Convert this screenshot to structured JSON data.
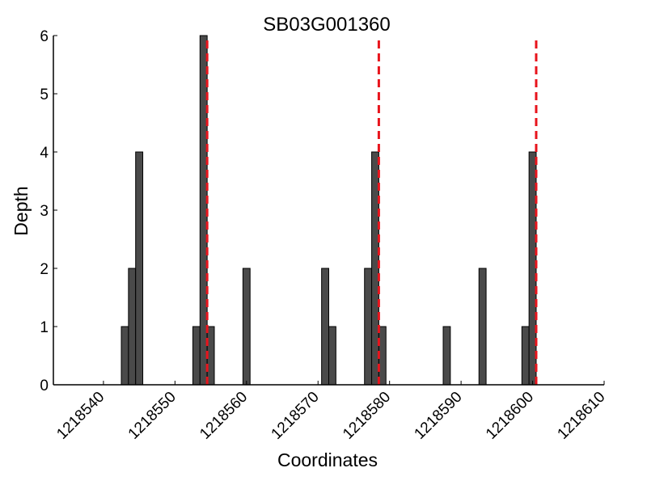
{
  "chart_data": {
    "type": "bar",
    "title": "SB03G001360",
    "xlabel": "Coordinates",
    "ylabel": "Depth",
    "xlim": [
      1218533,
      1218610
    ],
    "ylim": [
      0,
      6
    ],
    "x_ticks": [
      1218540,
      1218550,
      1218560,
      1218570,
      1218580,
      1218590,
      1218600,
      1218610
    ],
    "y_ticks": [
      0,
      1,
      2,
      3,
      4,
      5,
      6
    ],
    "grid": false,
    "bar_color": "#4a4a4a",
    "bar_edge_color": "#000000",
    "bar_width": 1,
    "bars": [
      {
        "x": 1218543,
        "depth": 1
      },
      {
        "x": 1218544,
        "depth": 2
      },
      {
        "x": 1218545,
        "depth": 4
      },
      {
        "x": 1218553,
        "depth": 1
      },
      {
        "x": 1218554,
        "depth": 6
      },
      {
        "x": 1218555,
        "depth": 1
      },
      {
        "x": 1218560,
        "depth": 2
      },
      {
        "x": 1218571,
        "depth": 2
      },
      {
        "x": 1218572,
        "depth": 1
      },
      {
        "x": 1218577,
        "depth": 2
      },
      {
        "x": 1218578,
        "depth": 4
      },
      {
        "x": 1218579,
        "depth": 1
      },
      {
        "x": 1218588,
        "depth": 1
      },
      {
        "x": 1218593,
        "depth": 2
      },
      {
        "x": 1218599,
        "depth": 1
      },
      {
        "x": 1218600,
        "depth": 4
      }
    ],
    "marker_lines": {
      "color": "#e8141c",
      "style": "dashed",
      "positions": [
        1218554.5,
        1218578.5,
        1218600.5
      ]
    }
  }
}
